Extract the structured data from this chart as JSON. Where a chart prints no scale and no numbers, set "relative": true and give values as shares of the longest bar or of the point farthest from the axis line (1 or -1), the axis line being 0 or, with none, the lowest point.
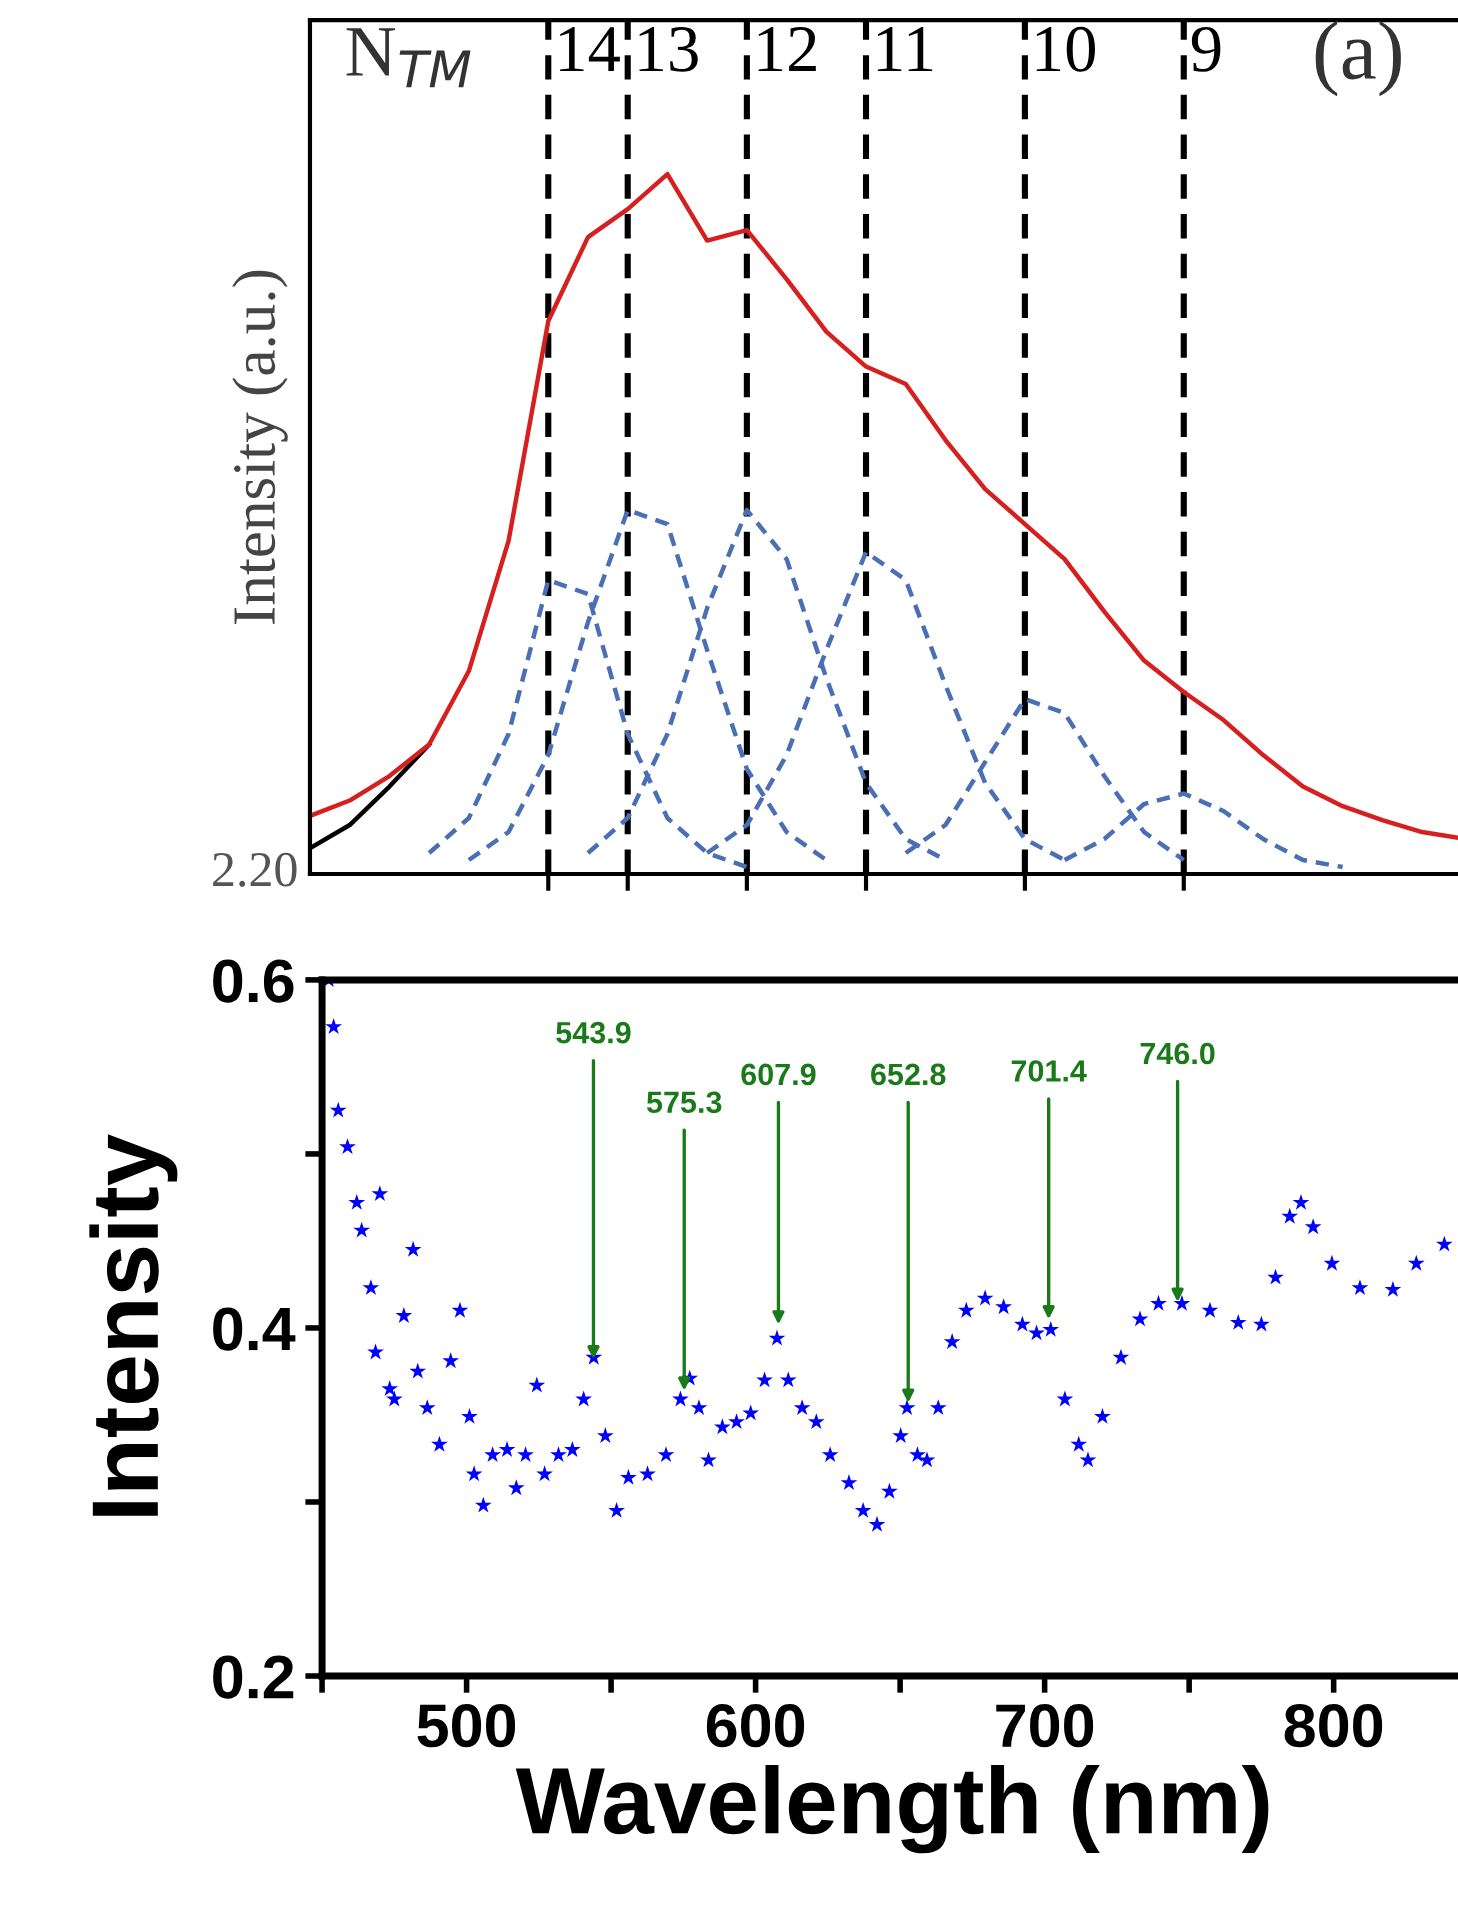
{
  "chart_data": [
    {
      "type": "line",
      "ylabel": "Intensity (a.u.)",
      "relative": true,
      "grid": "x",
      "categories": [
        null,
        null,
        null,
        null,
        null,
        null,
        null,
        null,
        null,
        null,
        null,
        null,
        null,
        null,
        null,
        null,
        null,
        null,
        null,
        null,
        null,
        null,
        null,
        null,
        null,
        null,
        null,
        null,
        null,
        null
      ],
      "series": [
        {
          "color": "#000000",
          "line_style": "solid",
          "values": [
            0.037,
            0.07,
            0.125,
            0.185,
            null,
            null,
            null,
            null,
            null,
            null,
            null,
            null,
            null,
            null,
            null,
            null,
            null,
            null,
            null,
            null,
            null,
            null,
            null,
            null,
            null,
            null,
            null,
            null,
            null,
            null
          ]
        },
        {
          "color": "#d62020",
          "line_style": "solid",
          "values": [
            0.083,
            0.105,
            0.14,
            0.185,
            0.29,
            0.476,
            0.79,
            0.91,
            0.95,
            1.0,
            0.905,
            0.92,
            0.85,
            0.775,
            0.725,
            0.7,
            0.62,
            0.55,
            0.5,
            0.45,
            0.375,
            0.305,
            0.26,
            0.22,
            0.17,
            0.125,
            0.097,
            0.077,
            0.06,
            0.051
          ]
        },
        {
          "color": "#4a6fb5",
          "line_style": "dashed",
          "values": [
            null,
            null,
            null,
            0.03,
            0.08,
            0.2,
            0.42,
            0.4,
            0.2,
            0.08,
            0.03,
            0.01,
            null,
            null,
            null,
            null,
            null,
            null,
            null,
            null,
            null,
            null,
            null,
            null,
            null,
            null,
            null,
            null,
            null,
            null
          ]
        },
        {
          "color": "#4a6fb5",
          "line_style": "dashed",
          "values": [
            null,
            null,
            null,
            null,
            0.02,
            0.06,
            0.17,
            0.36,
            0.52,
            0.5,
            0.32,
            0.15,
            0.06,
            0.02,
            null,
            null,
            null,
            null,
            null,
            null,
            null,
            null,
            null,
            null,
            null,
            null,
            null,
            null,
            null,
            null
          ]
        },
        {
          "color": "#4a6fb5",
          "line_style": "dashed",
          "values": [
            null,
            null,
            null,
            null,
            null,
            null,
            null,
            0.03,
            0.08,
            0.2,
            0.38,
            0.52,
            0.45,
            0.28,
            0.13,
            0.05,
            0.02,
            null,
            null,
            null,
            null,
            null,
            null,
            null,
            null,
            null,
            null,
            null,
            null,
            null
          ]
        },
        {
          "color": "#4a6fb5",
          "line_style": "dashed",
          "values": [
            null,
            null,
            null,
            null,
            null,
            null,
            null,
            null,
            null,
            null,
            0.03,
            0.07,
            0.17,
            0.32,
            0.46,
            0.42,
            0.27,
            0.13,
            0.05,
            0.02,
            null,
            null,
            null,
            null,
            null,
            null,
            null,
            null,
            null,
            null
          ]
        },
        {
          "color": "#4a6fb5",
          "line_style": "dashed",
          "values": [
            null,
            null,
            null,
            null,
            null,
            null,
            null,
            null,
            null,
            null,
            null,
            null,
            null,
            null,
            null,
            0.03,
            0.07,
            0.16,
            0.25,
            0.23,
            0.14,
            0.06,
            0.02,
            null,
            null,
            null,
            null,
            null,
            null,
            null
          ]
        },
        {
          "color": "#4a6fb5",
          "line_style": "dashed",
          "values": [
            null,
            null,
            null,
            null,
            null,
            null,
            null,
            null,
            null,
            null,
            null,
            null,
            null,
            null,
            null,
            null,
            null,
            null,
            null,
            0.02,
            0.05,
            0.1,
            0.115,
            0.09,
            0.05,
            0.02,
            0.01,
            null,
            null,
            null
          ]
        }
      ],
      "annotations": [
        "N$_{TM}$",
        "(a)",
        "2.20",
        "14",
        "13",
        "12",
        "11",
        "10",
        "9"
      ]
    },
    {
      "type": "scatter",
      "xlabel": "Wavelength (nm)",
      "ylabel": "Intensity",
      "color": "#0000ff",
      "marker": "star",
      "x": [
        452.3,
        454,
        455.6,
        458.8,
        462,
        463.7,
        466.9,
        468.5,
        470,
        473.4,
        475,
        478.3,
        481.5,
        483.1,
        486.4,
        490.6,
        494.5,
        497.7,
        501,
        502.6,
        505.8,
        509,
        514,
        517.2,
        520.4,
        524.3,
        527,
        531.8,
        536.6,
        540.5,
        544,
        548,
        551.9,
        556,
        562.6,
        569,
        574,
        577.2,
        580.4,
        583.7,
        588.5,
        593.4,
        598.3,
        603.1,
        607.4,
        611.3,
        616.1,
        621,
        625.8,
        632.3,
        637.2,
        642,
        646.3,
        650.2,
        652.4,
        656,
        659.3,
        663.2,
        668,
        672.9,
        679.4,
        685.8,
        692.3,
        697.2,
        702.1,
        707,
        711.8,
        715,
        720,
        726.4,
        733,
        739.4,
        747.5,
        757.2,
        767,
        775,
        779.9,
        784.8,
        788.7,
        792.9,
        799.4,
        809.1,
        820.5,
        828.6,
        838.3
      ],
      "values": [
        0.6,
        0.573,
        0.525,
        0.504,
        0.472,
        0.456,
        0.423,
        0.386,
        0.477,
        0.365,
        0.359,
        0.407,
        0.445,
        0.375,
        0.354,
        0.333,
        0.381,
        0.41,
        0.349,
        0.316,
        0.298,
        0.327,
        0.33,
        0.308,
        0.327,
        0.367,
        0.316,
        0.327,
        0.33,
        0.359,
        0.383,
        0.338,
        0.295,
        0.314,
        0.316,
        0.327,
        0.359,
        0.371,
        0.354,
        0.324,
        0.343,
        0.346,
        0.351,
        0.37,
        0.394,
        0.37,
        0.354,
        0.346,
        0.327,
        0.311,
        0.295,
        0.287,
        0.306,
        0.338,
        0.354,
        0.327,
        0.324,
        0.354,
        0.392,
        0.41,
        0.417,
        0.412,
        0.402,
        0.397,
        0.399,
        0.359,
        0.333,
        0.324,
        0.349,
        0.383,
        0.405,
        0.414,
        0.414,
        0.41,
        0.403,
        0.402,
        0.429,
        0.464,
        0.472,
        0.458,
        0.437,
        0.423,
        0.422,
        0.437,
        0.448
      ],
      "xlim": [
        450,
        846
      ],
      "ylim": [
        0.2,
        0.6
      ],
      "xticks": [
        {
          "value": 450,
          "label": null
        },
        500,
        {
          "value": 550,
          "label": null
        },
        600,
        {
          "value": 650,
          "label": null
        },
        700,
        {
          "value": 750,
          "label": null
        },
        800
      ],
      "yticks": [
        0.2,
        {
          "value": 0.3,
          "label": null
        },
        0.4,
        {
          "value": 0.5,
          "label": null
        },
        0.6
      ],
      "annotations": [
        {
          "text": "543.9",
          "x": 543.9,
          "y": 0.382
        },
        {
          "text": "575.3",
          "x": 575.3,
          "y": 0.364
        },
        {
          "text": "607.9",
          "x": 607.9,
          "y": 0.402
        },
        {
          "text": "652.8",
          "x": 652.8,
          "y": 0.357
        },
        {
          "text": "701.4",
          "x": 701.4,
          "y": 0.405
        },
        {
          "text": "746.0",
          "x": 746.0,
          "y": 0.415
        }
      ]
    }
  ]
}
